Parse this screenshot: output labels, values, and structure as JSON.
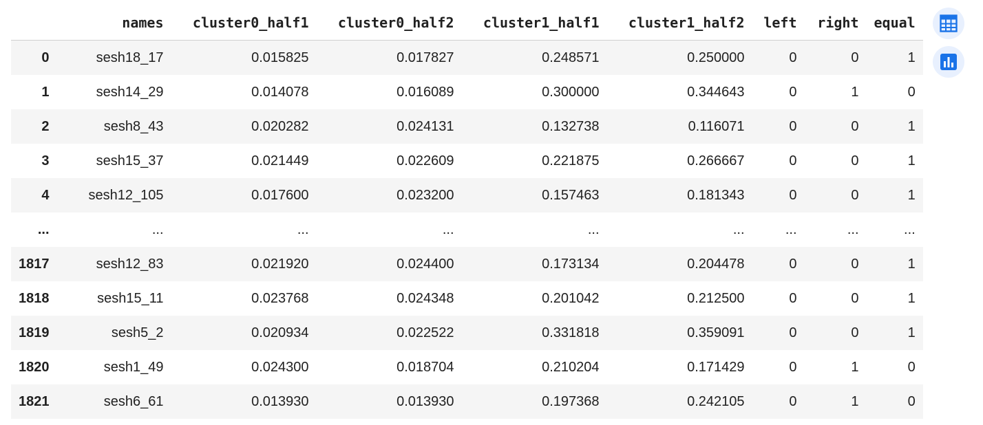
{
  "table": {
    "columns": [
      "",
      "names",
      "cluster0_half1",
      "cluster0_half2",
      "cluster1_half1",
      "cluster1_half2",
      "left",
      "right",
      "equal"
    ],
    "rows": [
      {
        "index": "0",
        "cells": [
          "sesh18_17",
          "0.015825",
          "0.017827",
          "0.248571",
          "0.250000",
          "0",
          "0",
          "1"
        ]
      },
      {
        "index": "1",
        "cells": [
          "sesh14_29",
          "0.014078",
          "0.016089",
          "0.300000",
          "0.344643",
          "0",
          "1",
          "0"
        ]
      },
      {
        "index": "2",
        "cells": [
          "sesh8_43",
          "0.020282",
          "0.024131",
          "0.132738",
          "0.116071",
          "0",
          "0",
          "1"
        ]
      },
      {
        "index": "3",
        "cells": [
          "sesh15_37",
          "0.021449",
          "0.022609",
          "0.221875",
          "0.266667",
          "0",
          "0",
          "1"
        ]
      },
      {
        "index": "4",
        "cells": [
          "sesh12_105",
          "0.017600",
          "0.023200",
          "0.157463",
          "0.181343",
          "0",
          "0",
          "1"
        ]
      },
      {
        "index": "...",
        "cells": [
          "...",
          "...",
          "...",
          "...",
          "...",
          "...",
          "...",
          "..."
        ]
      },
      {
        "index": "1817",
        "cells": [
          "sesh12_83",
          "0.021920",
          "0.024400",
          "0.173134",
          "0.204478",
          "0",
          "0",
          "1"
        ]
      },
      {
        "index": "1818",
        "cells": [
          "sesh15_11",
          "0.023768",
          "0.024348",
          "0.201042",
          "0.212500",
          "0",
          "0",
          "1"
        ]
      },
      {
        "index": "1819",
        "cells": [
          "sesh5_2",
          "0.020934",
          "0.022522",
          "0.331818",
          "0.359091",
          "0",
          "0",
          "1"
        ]
      },
      {
        "index": "1820",
        "cells": [
          "sesh1_49",
          "0.024300",
          "0.018704",
          "0.210204",
          "0.171429",
          "0",
          "1",
          "0"
        ]
      },
      {
        "index": "1821",
        "cells": [
          "sesh6_61",
          "0.013930",
          "0.013930",
          "0.197368",
          "0.242105",
          "0",
          "1",
          "0"
        ]
      }
    ]
  },
  "toolbar": {
    "table_icon": "table-icon",
    "chart_icon": "bar-chart-icon"
  },
  "colors": {
    "accent": "#1a73e8",
    "button_bg": "#e8f0fe",
    "stripe": "#f5f5f5"
  }
}
